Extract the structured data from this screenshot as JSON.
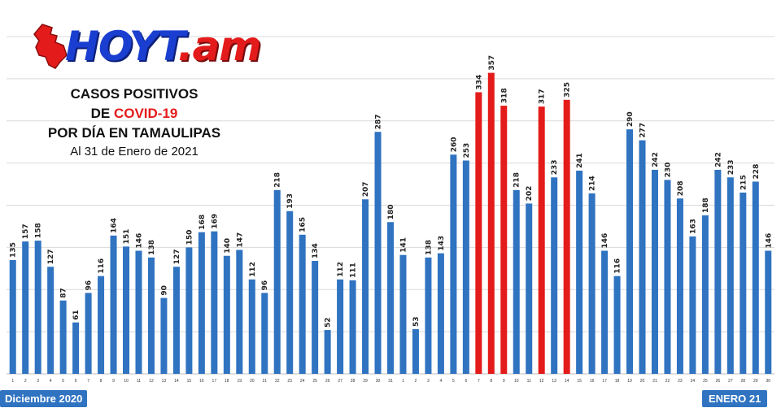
{
  "logo": {
    "main": "HOYT",
    "suffix": ".am"
  },
  "title": {
    "line1": "CASOS POSITIVOS",
    "line2_prefix": "DE ",
    "line2_highlight": "COVID-19",
    "line3": "POR DÍA EN TAMAULIPAS",
    "line4": "Al 31 de Enero de 2021"
  },
  "footer": {
    "left_label": "Diciembre 2020",
    "right_label": "ENERO 21"
  },
  "colors": {
    "bar": "#2f73c1",
    "highlight": "#e41b1b",
    "grid": "#d9d9d9"
  },
  "chart_data": {
    "type": "bar",
    "title": "CASOS POSITIVOS DE COVID-19 POR DÍA EN TAMAULIPAS",
    "subtitle": "Al 31 de Enero de 2021",
    "xlabel": "",
    "ylabel": "",
    "ylim": [
      0,
      400
    ],
    "grid": true,
    "categories": [
      "1",
      "2",
      "3",
      "4",
      "5",
      "6",
      "7",
      "8",
      "9",
      "10",
      "11",
      "12",
      "13",
      "14",
      "15",
      "16",
      "17",
      "18",
      "19",
      "20",
      "21",
      "22",
      "23",
      "24",
      "25",
      "26",
      "27",
      "28",
      "29",
      "30",
      "31",
      "1",
      "2",
      "3",
      "4",
      "5",
      "6",
      "7",
      "8",
      "9",
      "10",
      "11",
      "12",
      "13",
      "14",
      "15",
      "16",
      "17",
      "18",
      "19",
      "20",
      "21",
      "22",
      "23",
      "24",
      "25",
      "26",
      "27",
      "28",
      "29",
      "30"
    ],
    "values": [
      135,
      157,
      158,
      127,
      87,
      61,
      96,
      116,
      164,
      151,
      146,
      138,
      90,
      127,
      150,
      168,
      169,
      140,
      147,
      112,
      96,
      218,
      193,
      165,
      134,
      52,
      112,
      111,
      207,
      287,
      180,
      141,
      53,
      138,
      143,
      260,
      253,
      334,
      357,
      318,
      218,
      202,
      317,
      233,
      325,
      241,
      214,
      146,
      116,
      290,
      277,
      242,
      230,
      208,
      163,
      188,
      242,
      233,
      215,
      228,
      146
    ],
    "highlighted_indices": [
      37,
      38,
      39,
      42,
      44
    ]
  }
}
